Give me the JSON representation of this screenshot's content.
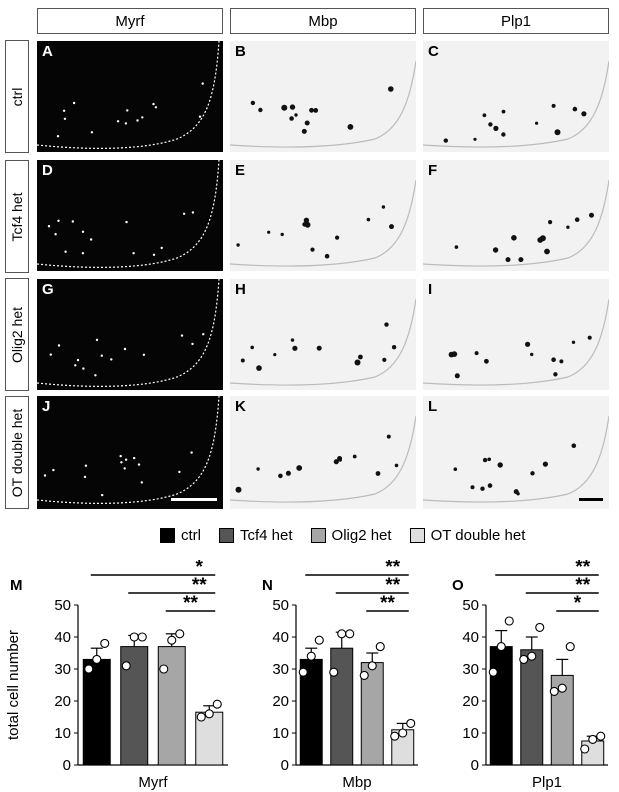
{
  "columns": [
    "Myrf",
    "Mbp",
    "Plp1"
  ],
  "rows": [
    "ctrl",
    "Tcf4 het",
    "Olig2 het",
    "OT double het"
  ],
  "panel_letters": [
    [
      "A",
      "B",
      "C"
    ],
    [
      "D",
      "E",
      "F"
    ],
    [
      "G",
      "H",
      "I"
    ],
    [
      "J",
      "K",
      "L"
    ]
  ],
  "colors": {
    "ctrl": "#000000",
    "tcf4": "#555555",
    "olig2": "#a6a6a6",
    "ot": "#dedede"
  },
  "legend": [
    "ctrl",
    "Tcf4 het",
    "Olig2 het",
    "OT double het"
  ],
  "chart_data": [
    {
      "type": "bar",
      "panel": "M",
      "xlabel": "Myrf",
      "ylabel": "total cell number",
      "categories": [
        "ctrl",
        "Tcf4 het",
        "Olig2 het",
        "OT double het"
      ],
      "values": [
        33,
        37,
        37,
        16.5
      ],
      "errors": [
        3.5,
        3.5,
        4,
        2
      ],
      "points": [
        [
          30,
          33,
          38
        ],
        [
          31,
          40,
          40
        ],
        [
          30,
          39,
          41
        ],
        [
          15,
          16,
          19
        ]
      ],
      "ylim": [
        0,
        50
      ],
      "yticks": [
        0,
        10,
        20,
        30,
        40,
        50
      ],
      "significance": [
        {
          "from": 2,
          "to": 3,
          "label": "**"
        },
        {
          "from": 1,
          "to": 3,
          "label": "**"
        },
        {
          "from": 0,
          "to": 3,
          "label": "*"
        }
      ]
    },
    {
      "type": "bar",
      "panel": "N",
      "xlabel": "Mbp",
      "ylabel": "",
      "categories": [
        "ctrl",
        "Tcf4 het",
        "Olig2 het",
        "OT double het"
      ],
      "values": [
        33,
        36.5,
        32,
        11
      ],
      "errors": [
        3.5,
        5,
        3,
        2
      ],
      "points": [
        [
          29,
          34,
          39
        ],
        [
          29,
          41,
          41
        ],
        [
          28,
          31,
          37
        ],
        [
          9,
          10,
          13
        ]
      ],
      "ylim": [
        0,
        50
      ],
      "yticks": [
        0,
        10,
        20,
        30,
        40,
        50
      ],
      "significance": [
        {
          "from": 2,
          "to": 3,
          "label": "**"
        },
        {
          "from": 1,
          "to": 3,
          "label": "**"
        },
        {
          "from": 0,
          "to": 3,
          "label": "**"
        }
      ]
    },
    {
      "type": "bar",
      "panel": "O",
      "xlabel": "Plp1",
      "ylabel": "",
      "categories": [
        "ctrl",
        "Tcf4 het",
        "Olig2 het",
        "OT double het"
      ],
      "values": [
        37,
        36,
        28,
        7.5
      ],
      "errors": [
        5,
        4,
        5,
        1.5
      ],
      "points": [
        [
          29,
          37,
          45
        ],
        [
          33,
          34,
          43
        ],
        [
          23,
          24,
          37
        ],
        [
          5,
          8,
          9
        ]
      ],
      "ylim": [
        0,
        50
      ],
      "yticks": [
        0,
        10,
        20,
        30,
        40,
        50
      ],
      "significance": [
        {
          "from": 2,
          "to": 3,
          "label": "*"
        },
        {
          "from": 1,
          "to": 3,
          "label": "**"
        },
        {
          "from": 0,
          "to": 3,
          "label": "**"
        }
      ]
    }
  ]
}
